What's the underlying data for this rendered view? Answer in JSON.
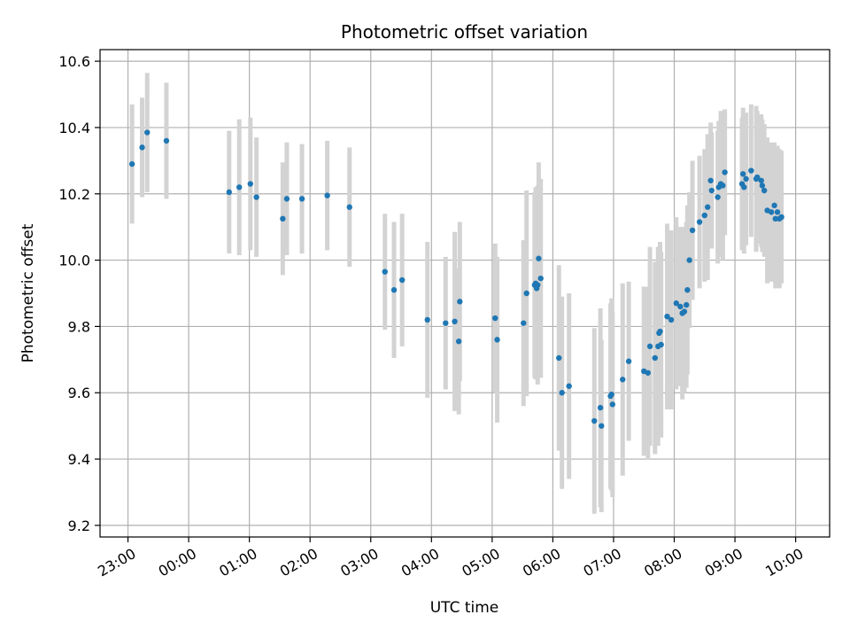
{
  "chart_data": {
    "type": "scatter",
    "title": "Photometric offset variation",
    "xlabel": "UTC time",
    "ylabel": "Photometric offset",
    "x_tick_labels": [
      "23:00",
      "00:00",
      "01:00",
      "02:00",
      "03:00",
      "04:00",
      "05:00",
      "06:00",
      "07:00",
      "08:00",
      "09:00",
      "10:00"
    ],
    "y_ticks": [
      9.2,
      9.4,
      9.6,
      9.8,
      10.0,
      10.2,
      10.4,
      10.6
    ],
    "y_tick_labels": [
      "9.2",
      "9.4",
      "9.6",
      "9.8",
      "10.0",
      "10.2",
      "10.4",
      "10.6"
    ],
    "xlim_hours_since_first_tick": [
      -0.46,
      11.56
    ],
    "ylim": [
      9.165,
      10.635
    ],
    "grid": true,
    "colors": {
      "points": "#1f77b4",
      "errorbars": "#d3d3d3",
      "grid": "#b0b0b0"
    },
    "series": [
      {
        "x": [
          "23:04",
          "23:14",
          "23:19",
          "23:38",
          "00:40",
          "00:50",
          "01:01",
          "01:07",
          "01:33",
          "01:37",
          "01:52",
          "02:17",
          "02:39",
          "03:14",
          "03:23",
          "03:31",
          "03:56",
          "04:14",
          "04:23",
          "04:27",
          "04:28",
          "05:03",
          "05:05",
          "05:31",
          "05:34",
          "05:42",
          "05:43",
          "05:44",
          "05:45",
          "05:46",
          "05:48",
          "06:06",
          "06:09",
          "06:16",
          "06:41",
          "06:47",
          "06:48",
          "06:57",
          "06:58",
          "06:59",
          "07:09",
          "07:15",
          "07:30",
          "07:34",
          "07:36",
          "07:41",
          "07:44",
          "07:45",
          "07:46",
          "07:47",
          "07:53",
          "07:57",
          "08:02",
          "08:06",
          "08:08",
          "08:10",
          "08:12",
          "08:13",
          "08:15",
          "08:18",
          "08:25",
          "08:30",
          "08:33",
          "08:36",
          "08:37",
          "08:43",
          "08:44",
          "08:46",
          "08:48",
          "08:50",
          "09:07",
          "09:08",
          "09:09",
          "09:11",
          "09:16",
          "09:21",
          "09:22",
          "09:26",
          "09:27",
          "09:29",
          "09:32",
          "09:36",
          "09:39",
          "09:40",
          "09:42",
          "09:44",
          "09:46"
        ],
        "y": [
          10.29,
          10.34,
          10.385,
          10.36,
          10.205,
          10.22,
          10.23,
          10.19,
          10.125,
          10.185,
          10.185,
          10.195,
          10.16,
          9.965,
          9.91,
          9.94,
          9.82,
          9.81,
          9.815,
          9.755,
          9.875,
          9.825,
          9.76,
          9.81,
          9.9,
          9.925,
          9.93,
          9.915,
          9.925,
          10.005,
          9.945,
          9.705,
          9.6,
          9.62,
          9.515,
          9.555,
          9.5,
          9.59,
          9.595,
          9.565,
          9.64,
          9.695,
          9.665,
          9.66,
          9.74,
          9.705,
          9.74,
          9.78,
          9.785,
          9.745,
          9.83,
          9.82,
          9.87,
          9.86,
          9.84,
          9.845,
          9.865,
          9.91,
          10.0,
          10.09,
          10.115,
          10.135,
          10.16,
          10.24,
          10.21,
          10.19,
          10.22,
          10.23,
          10.225,
          10.265,
          10.23,
          10.26,
          10.22,
          10.245,
          10.27,
          10.245,
          10.25,
          10.24,
          10.225,
          10.21,
          10.15,
          10.145,
          10.165,
          10.125,
          10.145,
          10.125,
          10.13
        ],
        "yerr": [
          0.18,
          0.15,
          0.18,
          0.175,
          0.185,
          0.205,
          0.2,
          0.18,
          0.17,
          0.17,
          0.165,
          0.165,
          0.18,
          0.175,
          0.205,
          0.2,
          0.235,
          0.2,
          0.27,
          0.22,
          0.24,
          0.225,
          0.25,
          0.25,
          0.31,
          0.28,
          0.29,
          0.26,
          0.3,
          0.29,
          0.3,
          0.28,
          0.29,
          0.28,
          0.28,
          0.3,
          0.26,
          0.28,
          0.29,
          0.28,
          0.29,
          0.24,
          0.255,
          0.26,
          0.3,
          0.29,
          0.3,
          0.26,
          0.27,
          0.28,
          0.28,
          0.27,
          0.26,
          0.24,
          0.26,
          0.245,
          0.25,
          0.255,
          0.205,
          0.21,
          0.2,
          0.2,
          0.22,
          0.175,
          0.175,
          0.2,
          0.2,
          0.22,
          0.225,
          0.19,
          0.2,
          0.2,
          0.2,
          0.2,
          0.2,
          0.22,
          0.2,
          0.2,
          0.2,
          0.2,
          0.22,
          0.21,
          0.19,
          0.21,
          0.2,
          0.21,
          0.2
        ]
      }
    ]
  }
}
